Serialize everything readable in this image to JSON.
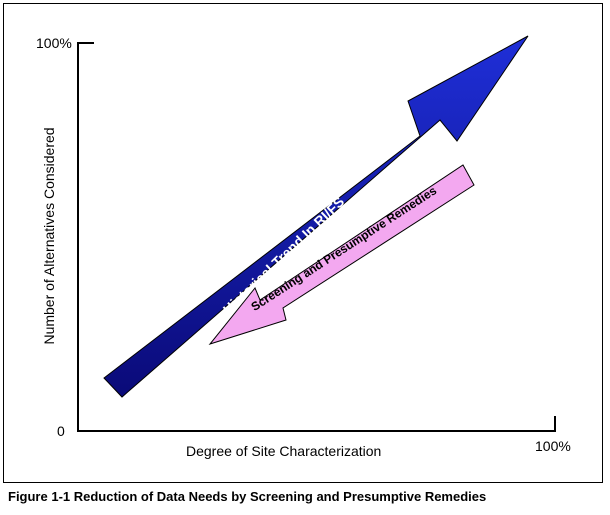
{
  "figure": {
    "caption": "Figure 1-1  Reduction of Data Needs by Screening and Presumptive Remedies"
  },
  "axes": {
    "y_label": "Number of Alternatives Considered",
    "x_label": "Degree of Site Characterization",
    "y_max_label": "100%",
    "y_min_label": "0",
    "x_max_label": "100%"
  },
  "arrows": {
    "historical": {
      "label": "Historical Trend In RI/FS",
      "direction": "up-right",
      "color_top": "#1f2fd8",
      "color_bottom": "#0a0a78"
    },
    "screening": {
      "label": "Screening and Presumptive Remedies",
      "direction": "down-left",
      "color": "#f3a8f0"
    }
  }
}
